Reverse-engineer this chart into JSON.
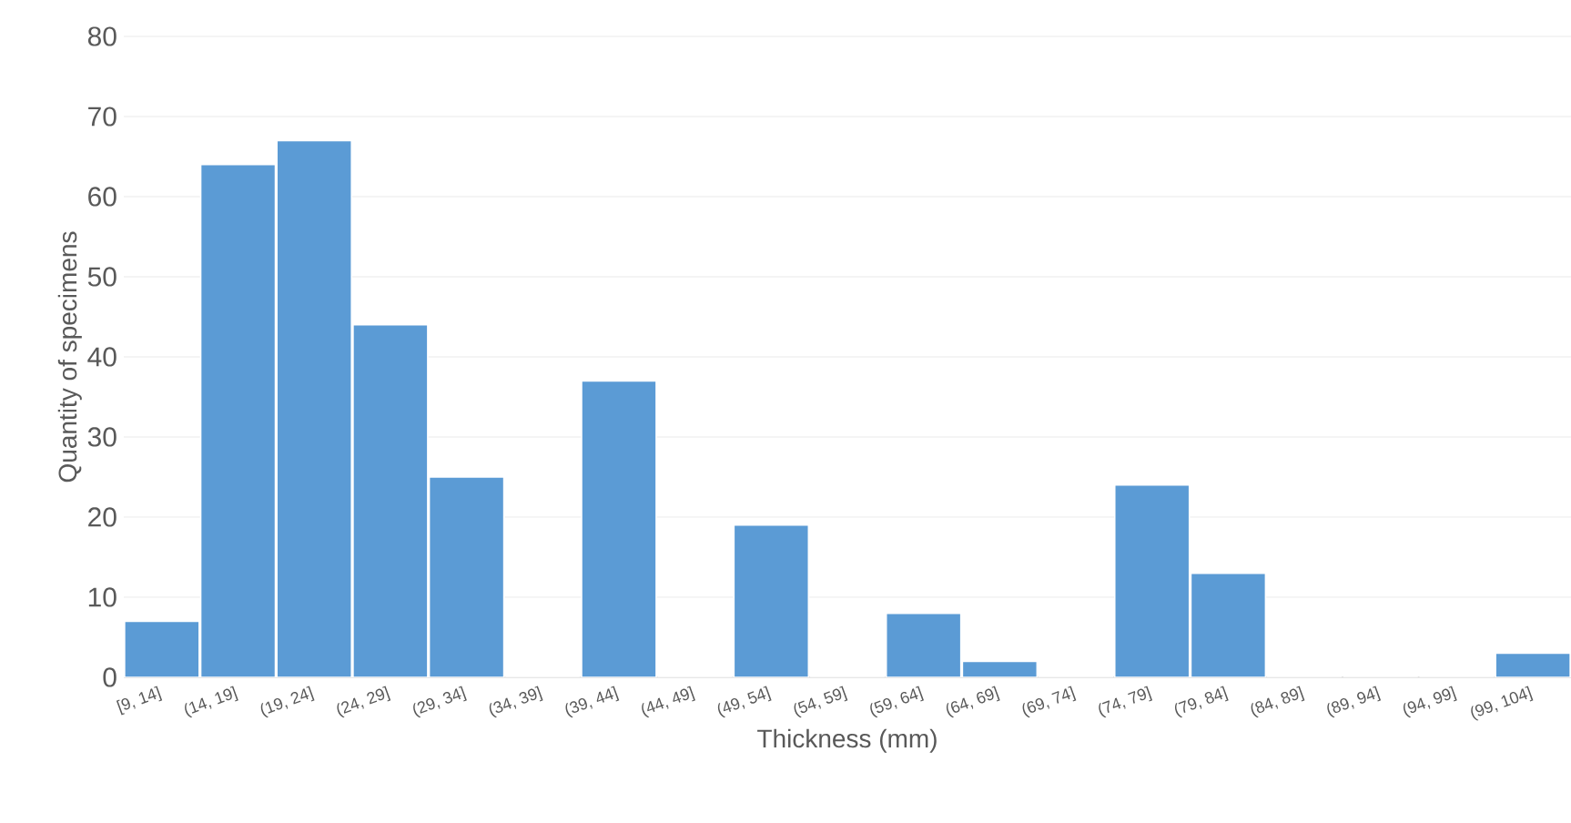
{
  "chart_data": {
    "type": "bar",
    "xlabel": "Thickness (mm)",
    "ylabel": "Quantity of specimens",
    "categories": [
      "[9, 14]",
      "(14, 19]",
      "(19, 24]",
      "(24, 29]",
      "(29, 34]",
      "(34, 39]",
      "(39, 44]",
      "(44, 49]",
      "(49, 54]",
      "(54, 59]",
      "(59, 64]",
      "(64, 69]",
      "(69, 74]",
      "(74, 79]",
      "(79, 84]",
      "(84, 89]",
      "(89, 94]",
      "(94, 99]",
      "(99, 104]"
    ],
    "values": [
      7,
      64,
      67,
      44,
      25,
      0,
      37,
      0,
      19,
      0,
      8,
      2,
      0,
      24,
      13,
      0,
      0,
      0,
      3
    ],
    "color": "#5b9bd5",
    "ylim": [
      0,
      80
    ],
    "yticks": [
      0,
      10,
      20,
      30,
      40,
      50,
      60,
      70,
      80
    ],
    "grid": "y"
  }
}
